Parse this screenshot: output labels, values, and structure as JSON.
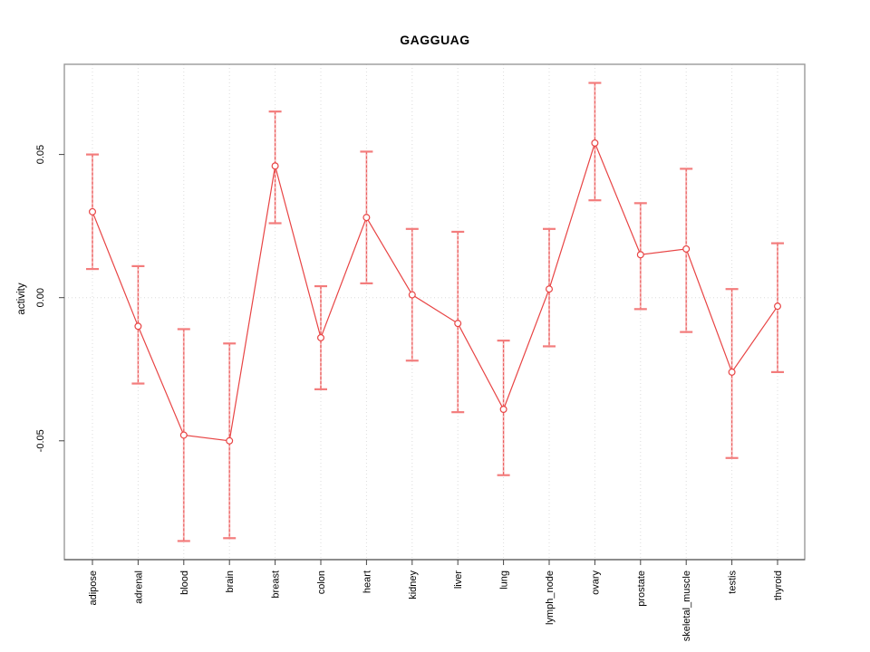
{
  "chart_data": {
    "type": "line",
    "title": "GAGGUAG",
    "xlabel": "",
    "ylabel": "activity",
    "legend_position": "none",
    "marker": "open-circle",
    "error_bars": true,
    "grid": {
      "vertical": "dotted-per-category",
      "horizontal": "dotted-at-zero-only"
    },
    "ylim": [
      -0.0915,
      0.0815
    ],
    "yticks": [
      {
        "value": -0.05,
        "label": "-0.05"
      },
      {
        "value": 0.0,
        "label": "0.00"
      },
      {
        "value": 0.05,
        "label": "0.05"
      }
    ],
    "categories": [
      "adipose",
      "adrenal",
      "blood",
      "brain",
      "breast",
      "colon",
      "heart",
      "kidney",
      "liver",
      "lung",
      "lymph_node",
      "ovary",
      "prostate",
      "skeletal_muscle",
      "testis",
      "thyroid"
    ],
    "series": [
      {
        "name": "activity",
        "values": [
          0.03,
          -0.01,
          -0.048,
          -0.05,
          0.046,
          -0.014,
          0.028,
          0.001,
          -0.009,
          -0.039,
          0.003,
          0.054,
          0.015,
          0.017,
          -0.026,
          -0.003
        ],
        "ci_upper": [
          0.05,
          0.011,
          -0.011,
          -0.016,
          0.065,
          0.004,
          0.051,
          0.024,
          0.023,
          -0.015,
          0.024,
          0.075,
          0.033,
          0.045,
          0.003,
          0.019
        ],
        "ci_lower": [
          0.01,
          -0.03,
          -0.085,
          -0.084,
          0.026,
          -0.032,
          0.005,
          -0.022,
          -0.04,
          -0.062,
          -0.017,
          0.034,
          -0.004,
          -0.012,
          -0.056,
          -0.026
        ]
      }
    ],
    "colors": {
      "point": "#e84444",
      "line": "#e84444",
      "error_bar_soft": "#f59090",
      "error_cap": "#f37c7c",
      "grid": "#dcdcdc",
      "frame": "#999999",
      "axis": "#444444",
      "text": "#000000"
    }
  }
}
